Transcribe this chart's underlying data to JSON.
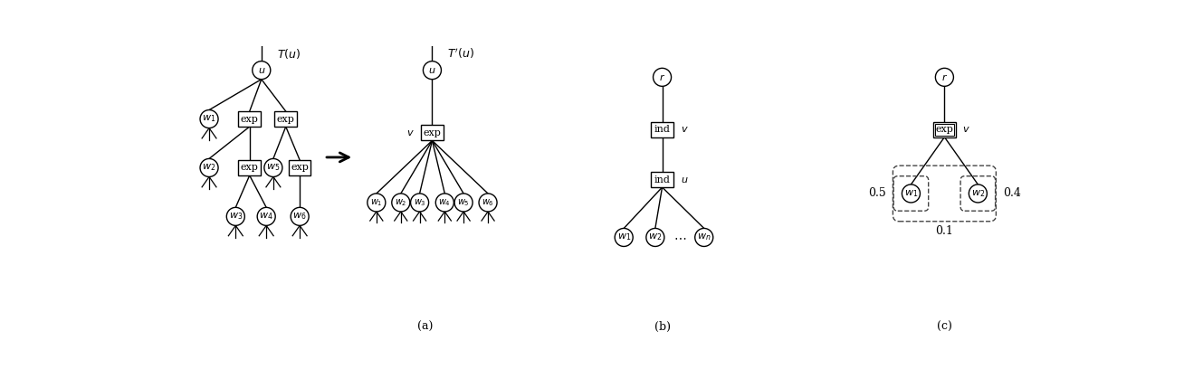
{
  "fig_width": 13.29,
  "fig_height": 4.29,
  "dpi": 100,
  "bg_color": "#ffffff",
  "lc": "#000000",
  "cr": 0.13,
  "rw": 0.32,
  "rh": 0.22,
  "caption_a": "(a)",
  "caption_b": "(b)",
  "caption_c": "(c)"
}
